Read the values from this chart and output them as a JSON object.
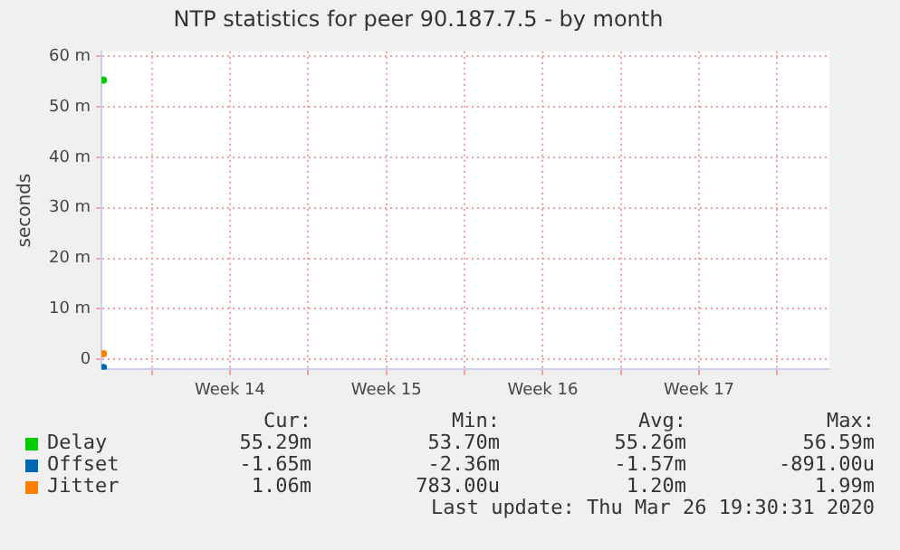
{
  "chart_data": {
    "type": "line",
    "title": "NTP statistics for peer 90.187.7.5 - by month",
    "ylabel": "seconds",
    "x": [
      "2020-03-27T20:00"
    ],
    "series": [
      {
        "name": "Delay",
        "color": "#00cc00",
        "values": [
          55.3
        ]
      },
      {
        "name": "Offset",
        "color": "#0066b3",
        "values": [
          -1.6
        ]
      },
      {
        "name": "Jitter",
        "color": "#ff8000",
        "values": [
          1.1
        ]
      }
    ],
    "xlim": [
      "2020-03-27T18:00",
      "2020-04-29T08:00"
    ],
    "xticks": [
      {
        "value": "2020-03-30T00:00",
        "label": null
      },
      {
        "value": "2020-04-02T12:00",
        "label": "Week 14"
      },
      {
        "value": "2020-04-06T00:00",
        "label": null
      },
      {
        "value": "2020-04-09T12:00",
        "label": "Week 15"
      },
      {
        "value": "2020-04-13T00:00",
        "label": null
      },
      {
        "value": "2020-04-16T12:00",
        "label": "Week 16"
      },
      {
        "value": "2020-04-20T00:00",
        "label": null
      },
      {
        "value": "2020-04-23T12:00",
        "label": "Week 17"
      },
      {
        "value": "2020-04-27T00:00",
        "label": null
      }
    ],
    "ylim": [
      -2,
      61
    ],
    "yticks": [
      {
        "value": 0,
        "label": "0"
      },
      {
        "value": 10,
        "label": "10 m"
      },
      {
        "value": 20,
        "label": "20 m"
      },
      {
        "value": 30,
        "label": "30 m"
      },
      {
        "value": 40,
        "label": "40 m"
      },
      {
        "value": 50,
        "label": "50 m"
      },
      {
        "value": 60,
        "label": "60 m"
      }
    ],
    "grid": true,
    "legend": "bottom",
    "marker": "circle",
    "annotations": [
      "Cur:",
      "Min:",
      "Avg:",
      "Max:",
      "55.29m",
      "53.70m",
      "55.26m",
      "56.59m",
      "-1.65m",
      "-2.36m",
      "-1.57m",
      "-891.00u",
      "1.06m",
      "783.00u",
      "1.20m",
      "1.99m",
      "Last update: Thu Mar 26 19:30:31 2020"
    ]
  }
}
